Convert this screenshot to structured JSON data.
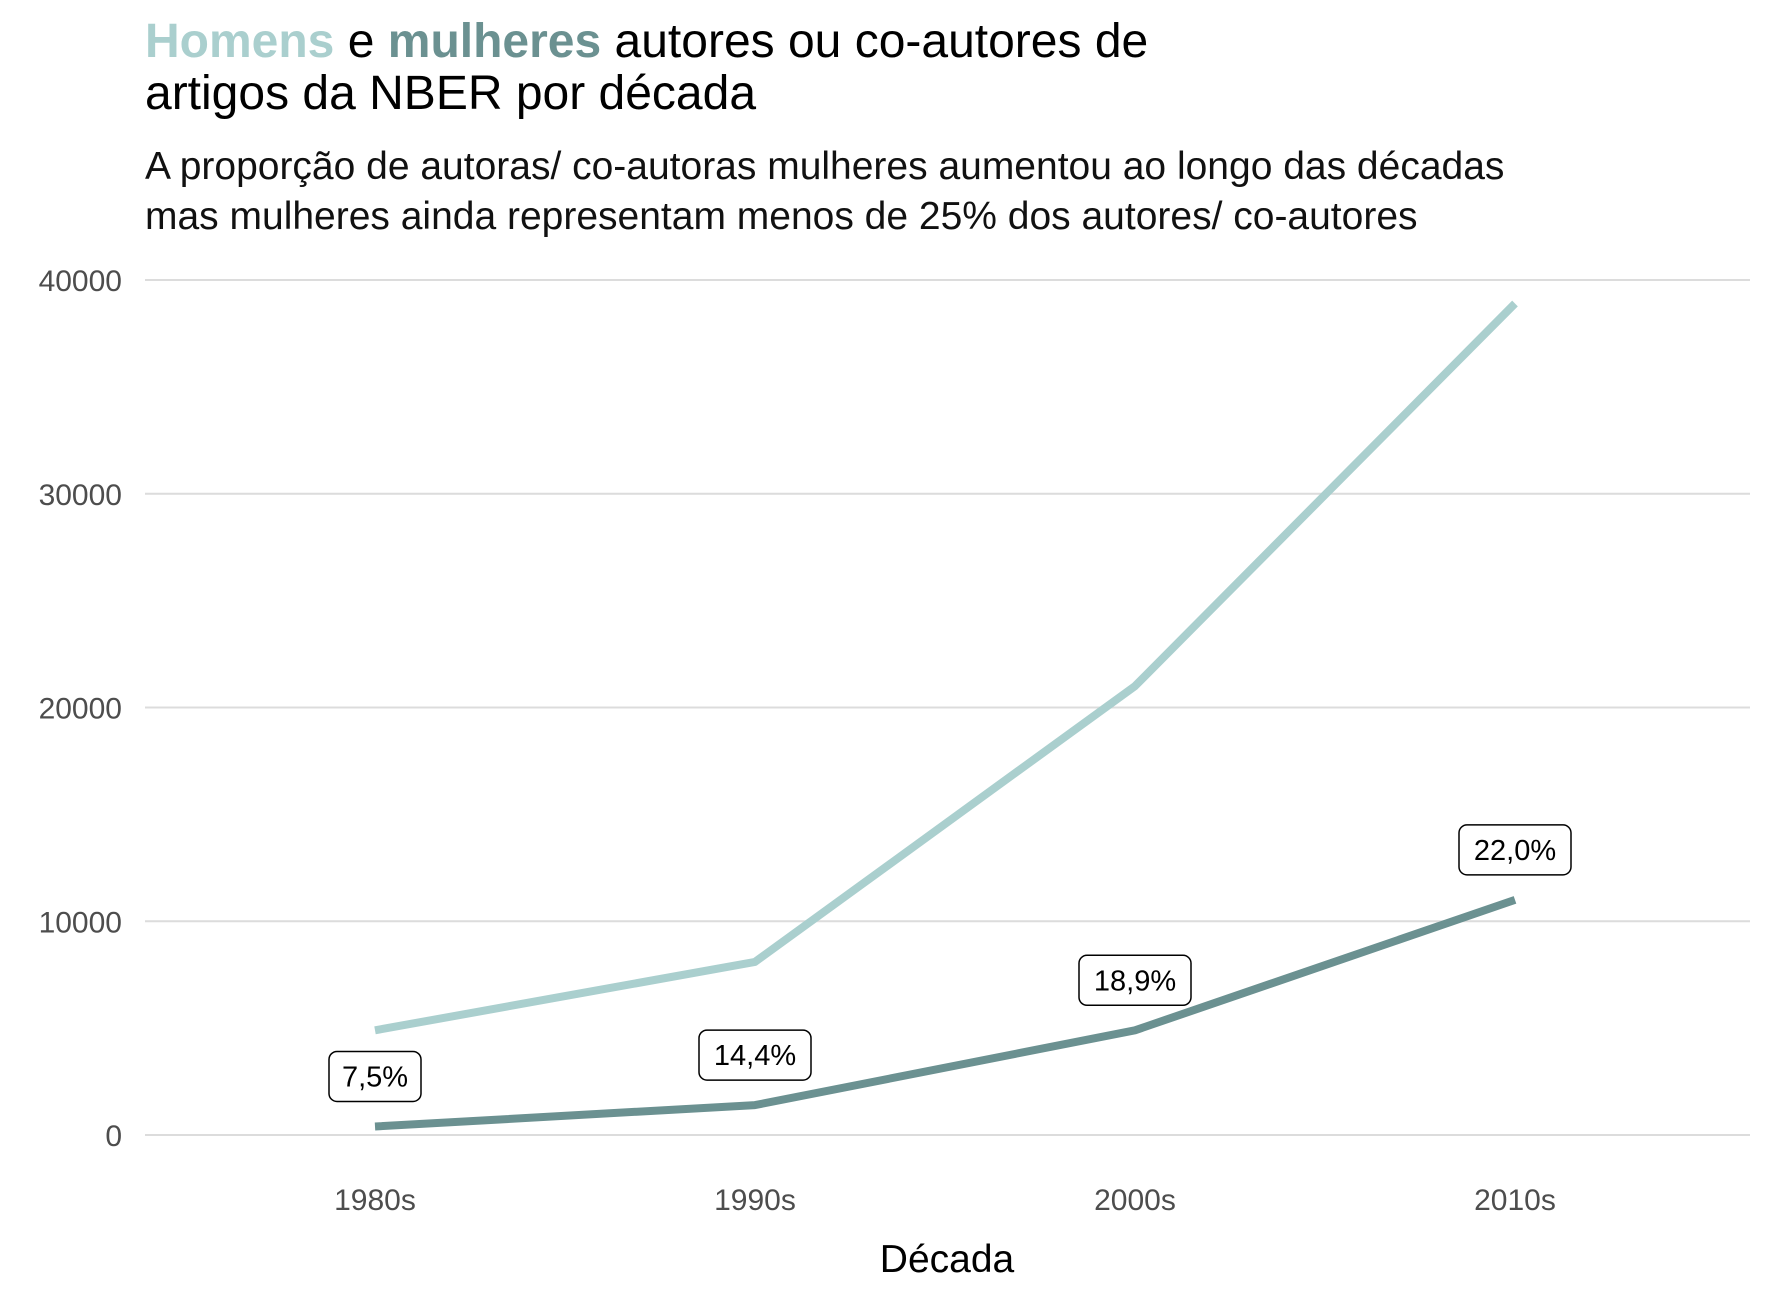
{
  "title": {
    "men_word": "Homens",
    "connector": "e",
    "women_word": "mulheres",
    "rest_line1": "autores ou co-autores de",
    "line2": "artigos da NBER por década"
  },
  "subtitle": {
    "line1": "A proporção de autoras/ co-autoras mulheres aumentou ao longo das décadas",
    "line2": "mas mulheres ainda representam menos de 25% dos autores/ co-autores"
  },
  "colors": {
    "men": "#aacfce",
    "women": "#6b9191",
    "grid": "#dcdcdc",
    "tick": "#4d4d4d"
  },
  "chart_data": {
    "type": "line",
    "title": "Homens e mulheres autores ou co-autores de artigos da NBER por década",
    "subtitle": "A proporção de autoras/ co-autoras mulheres aumentou ao longo das décadas mas mulheres ainda representam menos de 25% dos autores/ co-autores",
    "xlabel": "Década",
    "ylabel": "",
    "categories": [
      "1980s",
      "1990s",
      "2000s",
      "2010s"
    ],
    "ylim": [
      0,
      40000
    ],
    "yticks": [
      0,
      10000,
      20000,
      30000,
      40000
    ],
    "grid": "horizontal",
    "legend": "none (colored words in title)",
    "series": [
      {
        "name": "Homens",
        "color": "#aacfce",
        "values": [
          4900,
          8100,
          21000,
          38900
        ]
      },
      {
        "name": "mulheres",
        "color": "#6b9191",
        "values": [
          400,
          1400,
          4900,
          11000
        ],
        "labels": [
          "7,5%",
          "14,4%",
          "18,9%",
          "22,0%"
        ]
      }
    ]
  }
}
